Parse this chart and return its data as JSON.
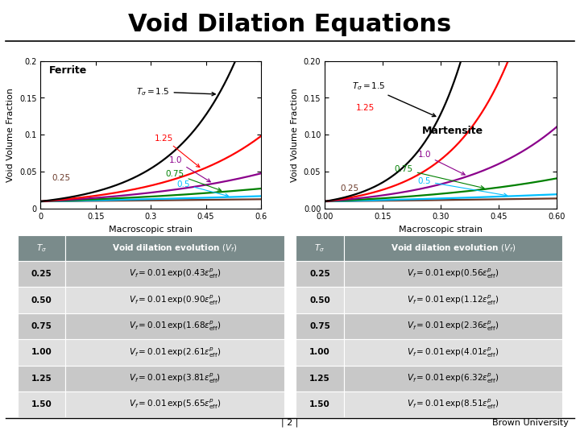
{
  "title": "Void Dilation Equations",
  "title_fontsize": 22,
  "background_color": "#ffffff",
  "ferrite_label": "Ferrite",
  "martensite_label": "Martensite",
  "ferrite_xlabel": "Macroscopic strain",
  "ferrite_ylabel": "Void Volume Fraction",
  "ferrite_xlim": [
    0,
    0.6
  ],
  "ferrite_ylim": [
    0,
    0.2
  ],
  "ferrite_xticks": [
    0,
    0.15,
    0.3,
    0.45,
    0.6
  ],
  "ferrite_yticks": [
    0,
    0.05,
    0.1,
    0.15,
    0.2
  ],
  "martensite_xlabel": "Macroscopic strain",
  "martensite_ylabel": "Void Volume Fraction",
  "martensite_xlim": [
    0.0,
    0.6
  ],
  "martensite_ylim": [
    0.0,
    0.2
  ],
  "martensite_xticks": [
    0.0,
    0.15,
    0.3,
    0.45,
    0.6
  ],
  "martensite_yticks": [
    0.0,
    0.05,
    0.1,
    0.15,
    0.2
  ],
  "T_sigma_values": [
    0.25,
    0.5,
    0.75,
    1.0,
    1.25,
    1.5
  ],
  "ferrite_coeffs": [
    0.43,
    0.9,
    1.68,
    2.61,
    3.81,
    5.65
  ],
  "martensite_coeffs": [
    0.56,
    1.12,
    2.36,
    4.01,
    6.32,
    8.51
  ],
  "line_colors": [
    "#6B3A2A",
    "#00BFFF",
    "#008000",
    "#8B008B",
    "#FF0000",
    "#000000"
  ],
  "line_labels": [
    "0.25",
    "0.5",
    "0.75",
    "1.0",
    "1.25",
    "1.5"
  ],
  "table_header_color": "#7A8B8B",
  "table_row_colors": [
    "#C8C8C8",
    "#E0E0E0"
  ],
  "table_header_text_color": "#ffffff"
}
